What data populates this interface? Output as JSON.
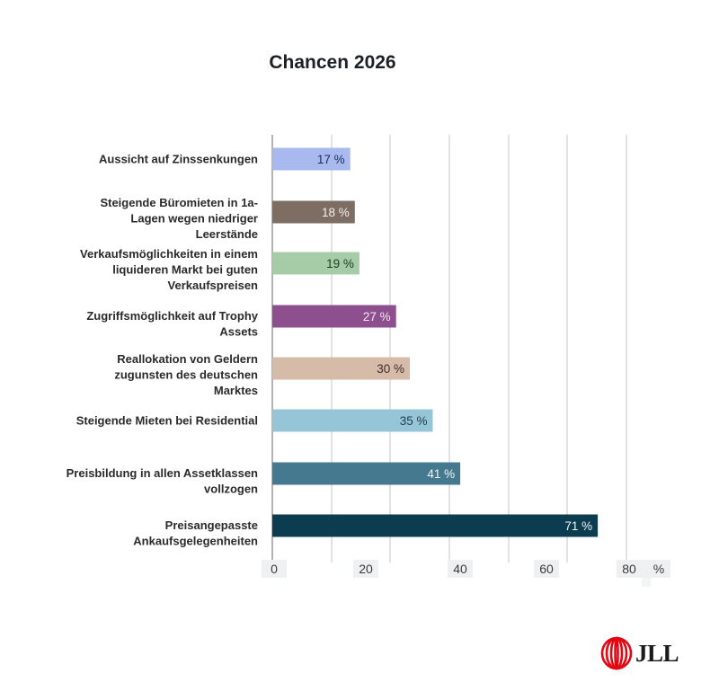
{
  "chart_data": {
    "type": "bar",
    "orientation": "horizontal",
    "title": "Chancen 2026",
    "xlabel": "%",
    "ylabel": "",
    "xlim": [
      0,
      80
    ],
    "x_ticks": [
      "0",
      "20",
      "40",
      "60",
      "80"
    ],
    "x_unit_label": "%",
    "grid": true,
    "legend": "none",
    "categories": [
      [
        "Aussicht auf Zinssenkungen"
      ],
      [
        "Steigende Büromieten in 1a-",
        "Lagen wegen niedriger",
        "Leerstände"
      ],
      [
        "Verkaufsmöglichkeiten in einem",
        "liquideren Markt bei guten",
        "Verkaufspreisen"
      ],
      [
        "Zugriffsmöglichkeit auf Trophy",
        "Assets"
      ],
      [
        "Reallokation von Geldern",
        "zugunsten des deutschen",
        "Marktes"
      ],
      [
        "Steigende Mieten bei Residential"
      ],
      [
        "Preisbildung in allen Assetklassen",
        "vollzogen"
      ],
      [
        "Preisangepasste",
        "Ankaufsgelegenheiten"
      ]
    ],
    "values": [
      17,
      18,
      19,
      27,
      30,
      35,
      41,
      71
    ],
    "value_labels": [
      "17 %",
      "18 %",
      "19 %",
      "27 %",
      "30 %",
      "35 %",
      "41 %",
      "71 %"
    ],
    "bar_colors": [
      "#a7b9ef",
      "#7e6d63",
      "#a6cca7",
      "#8e4f8f",
      "#d5bba8",
      "#95c5d6",
      "#45798f",
      "#0b3c4f"
    ],
    "label_colors": [
      "#1d2d5a",
      "#f3f0ec",
      "#1d3a22",
      "#f5e6f6",
      "#3a2d26",
      "#1d3d4c",
      "#eef6f9",
      "#eef6f9"
    ]
  },
  "branding": {
    "logo_text": "JLL",
    "logo_icon": "jll-ellipse-logo-icon",
    "brand_color": "#e30613"
  }
}
